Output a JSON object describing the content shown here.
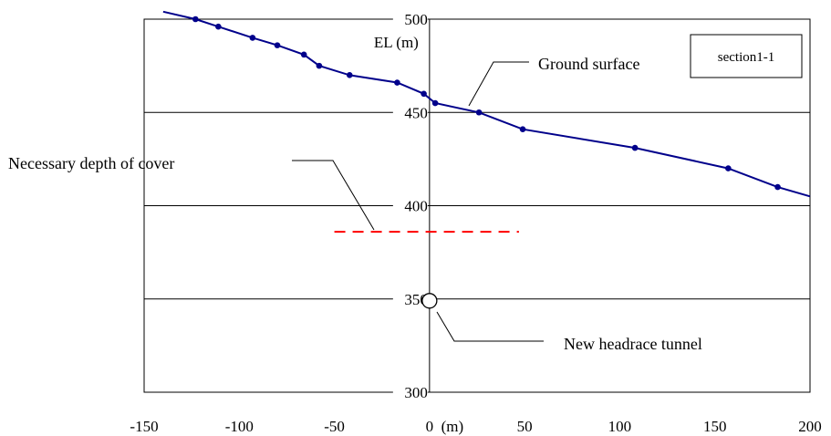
{
  "chart_data": {
    "type": "line",
    "ylabel": "EL (m)",
    "xunit": "(m)",
    "xlim": [
      -150,
      200
    ],
    "ylim": [
      300,
      500
    ],
    "xticks": [
      "-150",
      "-100",
      "-50",
      "0",
      "50",
      "100",
      "150",
      "200"
    ],
    "yticks": [
      "300",
      "350",
      "400",
      "450",
      "500"
    ],
    "grid": "horizontal",
    "box_label": "section1-1",
    "series": [
      {
        "name": "Ground surface",
        "color": "#00008b",
        "x": [
          -123,
          -111,
          -93,
          -80,
          -66,
          -58,
          -42,
          -17,
          -3,
          3,
          26,
          49,
          108,
          157,
          183
        ],
        "y": [
          500,
          496,
          490,
          486,
          481,
          475,
          470,
          466,
          460,
          455,
          450,
          441,
          431,
          420,
          410
        ]
      }
    ],
    "line_extension": {
      "x": [
        -140,
        200
      ],
      "y": [
        504,
        405
      ]
    },
    "cover_line": {
      "label": "Necessary depth of cover",
      "x": [
        -50,
        47
      ],
      "y": 386,
      "color": "#ff0000"
    },
    "tunnel": {
      "label": "New headrace tunnel",
      "x": 0,
      "y": 349
    }
  }
}
